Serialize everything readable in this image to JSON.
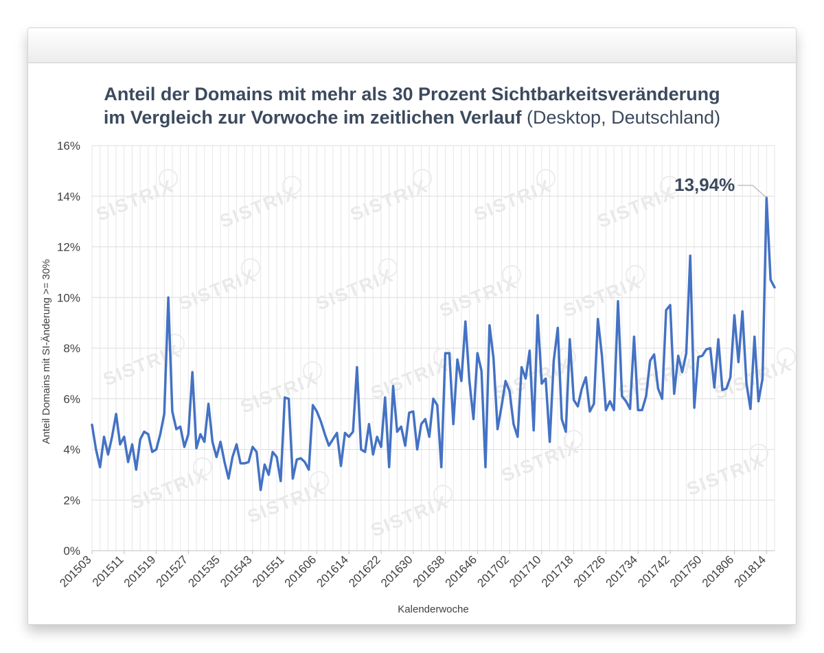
{
  "chart_data": {
    "type": "line",
    "title_line1": "Anteil der Domains mit mehr als 30 Prozent Sichtbarkeitsveränderung",
    "title_line2": "im Vergleich zur Vorwoche im zeitlichen Verlauf",
    "title_suffix": "(Desktop, Deutschland)",
    "xlabel": "Kalenderwoche",
    "ylabel": "Anteil Domains mit SI-Änderung >= 30%",
    "ylim": [
      0,
      16
    ],
    "yticks": [
      "0%",
      "2%",
      "4%",
      "6%",
      "8%",
      "10%",
      "12%",
      "14%",
      "16%"
    ],
    "xtick_labels": [
      "201503",
      "201511",
      "201519",
      "201527",
      "201535",
      "201543",
      "201551",
      "201606",
      "201614",
      "201622",
      "201630",
      "201638",
      "201646",
      "201702",
      "201710",
      "201718",
      "201726",
      "201734",
      "201742",
      "201750",
      "201806",
      "201814"
    ],
    "annotation": {
      "label": "13,94%",
      "value": 13.94
    },
    "watermark": "SISTRIX",
    "series": [
      {
        "name": "Anteil",
        "color": "#4472c4",
        "values": [
          4.97,
          4.0,
          3.3,
          4.5,
          3.8,
          4.5,
          5.4,
          4.2,
          4.5,
          3.5,
          4.2,
          3.2,
          4.4,
          4.7,
          4.6,
          3.9,
          4.0,
          4.6,
          5.4,
          10.0,
          5.5,
          4.8,
          4.9,
          4.1,
          4.6,
          7.05,
          4.05,
          4.6,
          4.3,
          5.8,
          4.3,
          3.7,
          4.3,
          3.5,
          2.85,
          3.7,
          4.2,
          3.45,
          3.45,
          3.5,
          4.1,
          3.9,
          2.4,
          3.4,
          3.0,
          3.9,
          3.7,
          2.75,
          6.05,
          6.0,
          2.85,
          3.6,
          3.65,
          3.5,
          3.2,
          5.75,
          5.5,
          5.1,
          4.6,
          4.15,
          4.4,
          4.65,
          3.35,
          4.65,
          4.5,
          4.7,
          7.25,
          4.0,
          3.9,
          5.0,
          3.8,
          4.5,
          4.1,
          6.05,
          3.3,
          6.5,
          4.7,
          4.9,
          4.15,
          5.45,
          5.5,
          4.0,
          5.0,
          5.2,
          4.5,
          6.0,
          5.75,
          3.3,
          7.8,
          7.8,
          5.0,
          7.55,
          6.7,
          9.05,
          6.7,
          5.2,
          7.8,
          7.1,
          3.3,
          8.9,
          7.6,
          4.8,
          5.7,
          6.7,
          6.3,
          5.0,
          4.5,
          7.25,
          6.8,
          7.9,
          4.75,
          9.3,
          6.6,
          6.8,
          4.3,
          7.5,
          8.8,
          5.2,
          4.7,
          8.35,
          5.95,
          5.7,
          6.4,
          6.85,
          5.5,
          5.8,
          9.15,
          7.7,
          5.55,
          5.9,
          5.55,
          9.85,
          6.1,
          5.9,
          5.6,
          8.45,
          5.55,
          5.55,
          6.1,
          7.5,
          7.75,
          6.4,
          6.0,
          9.5,
          9.7,
          6.2,
          7.7,
          7.05,
          7.8,
          11.65,
          5.65,
          7.65,
          7.7,
          7.95,
          8.0,
          6.45,
          8.35,
          6.35,
          6.4,
          6.85,
          9.3,
          7.45,
          9.45,
          6.6,
          5.6,
          8.45,
          5.9,
          6.8,
          13.94,
          10.7,
          10.4
        ]
      }
    ]
  }
}
